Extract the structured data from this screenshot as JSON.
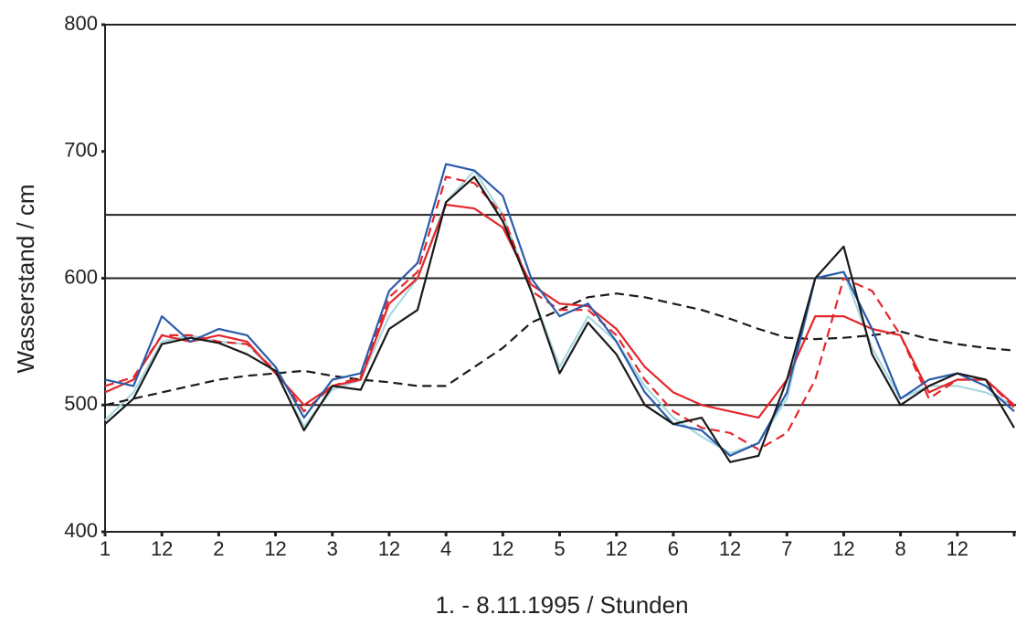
{
  "chart_data": {
    "type": "line",
    "xlabel": "1. - 8.11.1995 / Stunden",
    "ylabel": "Wasserstand / cm",
    "xlim": [
      0,
      192
    ],
    "ylim": [
      400,
      800
    ],
    "yticks": [
      400,
      500,
      600,
      700,
      800
    ],
    "xticks": [
      {
        "value": 0,
        "label": "1"
      },
      {
        "value": 12,
        "label": "12"
      },
      {
        "value": 24,
        "label": "2"
      },
      {
        "value": 36,
        "label": "12"
      },
      {
        "value": 48,
        "label": "3"
      },
      {
        "value": 60,
        "label": "12"
      },
      {
        "value": 72,
        "label": "4"
      },
      {
        "value": 84,
        "label": "12"
      },
      {
        "value": 96,
        "label": "5"
      },
      {
        "value": 108,
        "label": "12"
      },
      {
        "value": 120,
        "label": "6"
      },
      {
        "value": 132,
        "label": "12"
      },
      {
        "value": 144,
        "label": "7"
      },
      {
        "value": 156,
        "label": "12"
      },
      {
        "value": 168,
        "label": "8"
      },
      {
        "value": 180,
        "label": "12"
      },
      {
        "value": 192,
        "label": null
      }
    ],
    "reference_lines": [
      500,
      600,
      650
    ],
    "x": [
      0,
      6,
      12,
      18,
      24,
      30,
      36,
      42,
      48,
      54,
      60,
      66,
      72,
      78,
      84,
      90,
      96,
      102,
      108,
      114,
      120,
      126,
      132,
      138,
      144,
      150,
      156,
      162,
      168,
      174,
      180,
      186,
      192
    ],
    "series": [
      {
        "color": "#a8d8df",
        "dashed": false,
        "values": [
          488,
          510,
          550,
          555,
          550,
          548,
          525,
          483,
          512,
          520,
          570,
          600,
          660,
          685,
          650,
          590,
          530,
          570,
          550,
          515,
          490,
          475,
          462,
          470,
          505,
          600,
          605,
          545,
          505,
          515,
          515,
          510,
          500
        ]
      },
      {
        "color": "#1a1a1a",
        "dashed": true,
        "values": [
          500,
          505,
          510,
          515,
          520,
          523,
          525,
          527,
          523,
          520,
          518,
          515,
          515,
          530,
          545,
          565,
          575,
          585,
          588,
          585,
          580,
          575,
          568,
          560,
          553,
          552,
          553,
          555,
          558,
          552,
          548,
          545,
          543
        ]
      },
      {
        "color": "#e3262b",
        "dashed": false,
        "values": [
          510,
          520,
          555,
          550,
          555,
          550,
          525,
          500,
          515,
          520,
          580,
          600,
          658,
          655,
          640,
          595,
          580,
          578,
          560,
          530,
          510,
          500,
          495,
          490,
          520,
          570,
          570,
          560,
          555,
          510,
          520,
          520,
          500
        ]
      },
      {
        "color": "#e3262b",
        "dashed": true,
        "values": [
          515,
          522,
          555,
          555,
          550,
          548,
          527,
          495,
          515,
          522,
          585,
          605,
          680,
          675,
          650,
          590,
          575,
          575,
          555,
          520,
          495,
          482,
          478,
          465,
          478,
          520,
          600,
          590,
          555,
          505,
          520,
          520,
          498
        ]
      },
      {
        "color": "#2a5caa",
        "dashed": false,
        "values": [
          520,
          515,
          570,
          550,
          560,
          555,
          530,
          490,
          520,
          525,
          590,
          612,
          690,
          685,
          665,
          600,
          570,
          580,
          550,
          510,
          485,
          480,
          460,
          470,
          510,
          600,
          605,
          560,
          505,
          520,
          525,
          515,
          495
        ]
      },
      {
        "color": "#1a1a1a",
        "dashed": false,
        "values": [
          485,
          505,
          548,
          553,
          549,
          540,
          527,
          480,
          515,
          512,
          560,
          575,
          660,
          680,
          645,
          590,
          525,
          565,
          540,
          500,
          485,
          490,
          455,
          460,
          520,
          600,
          625,
          540,
          500,
          515,
          525,
          520,
          482
        ]
      }
    ]
  }
}
